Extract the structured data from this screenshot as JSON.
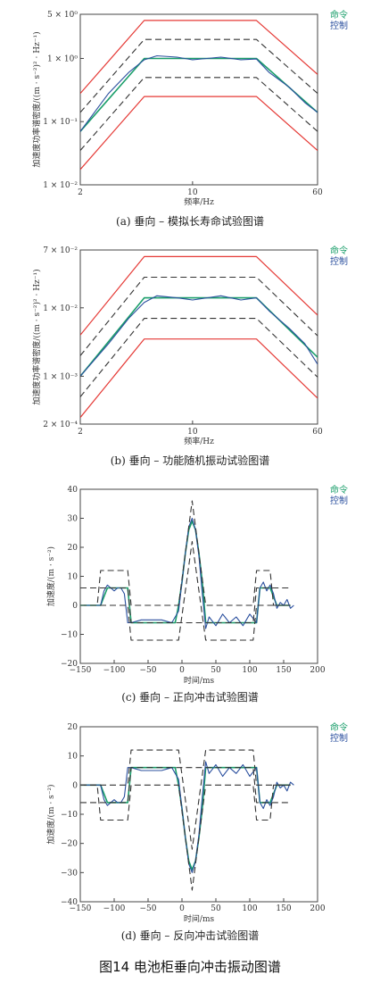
{
  "figure_title": "图14 电池柜垂向冲击振动图谱",
  "colors": {
    "limit": "#e53935",
    "alarm": "#333333",
    "command": "#1a9e6a",
    "control": "#2a4f9e"
  },
  "chart_data": [
    {
      "type": "line",
      "caption": "(a) 垂向 – 模拟长寿命试验图谱",
      "xlabel": "频率/Hz",
      "ylabel": "加速度功率谱密度/((m · s⁻²)² · Hz⁻¹)",
      "xscale": "log",
      "yscale": "log",
      "xlim": [
        2,
        60
      ],
      "ylim": [
        0.01,
        5
      ],
      "x_tick_labels": [
        "2",
        "10",
        "60"
      ],
      "y_tick_labels": [
        "5 × 10⁰",
        "1 × 10⁰",
        "1 × 10⁻¹",
        "1 × 10⁻²"
      ],
      "legend": [
        "命令",
        "控制"
      ],
      "series": [
        {
          "name": "命令",
          "x": [
            2,
            5,
            25,
            60
          ],
          "y": [
            0.07,
            1.0,
            1.0,
            0.14
          ]
        },
        {
          "name": "控制",
          "x": [
            2,
            3,
            4,
            5,
            6,
            8,
            10,
            15,
            20,
            25,
            30,
            40,
            50,
            60
          ],
          "y": [
            0.07,
            0.28,
            0.6,
            0.95,
            1.1,
            1.05,
            0.95,
            1.05,
            0.95,
            0.98,
            0.6,
            0.35,
            0.2,
            0.14
          ]
        },
        {
          "name": "upper limit",
          "x": [
            2,
            5,
            25,
            60
          ],
          "y": [
            0.28,
            4.0,
            4.0,
            0.56
          ]
        },
        {
          "name": "upper alarm",
          "x": [
            2,
            5,
            25,
            60
          ],
          "y": [
            0.14,
            2.0,
            2.0,
            0.28
          ]
        },
        {
          "name": "lower alarm",
          "x": [
            2,
            5,
            25,
            60
          ],
          "y": [
            0.035,
            0.5,
            0.5,
            0.07
          ]
        },
        {
          "name": "lower limit",
          "x": [
            2,
            5,
            25,
            60
          ],
          "y": [
            0.0175,
            0.25,
            0.25,
            0.035
          ]
        }
      ]
    },
    {
      "type": "line",
      "caption": "(b) 垂向 – 功能随机振动试验图谱",
      "xlabel": "频率/Hz",
      "ylabel": "加速度功率谱密度/((m · s⁻²)² · Hz⁻¹)",
      "xscale": "log",
      "yscale": "log",
      "xlim": [
        2,
        60
      ],
      "ylim": [
        0.0002,
        0.07
      ],
      "x_tick_labels": [
        "2",
        "10",
        "60"
      ],
      "y_tick_labels": [
        "7 × 10⁻²",
        "1 × 10⁻²",
        "1 × 10⁻³",
        "2 × 10⁻⁴"
      ],
      "legend": [
        "命令",
        "控制"
      ],
      "series": [
        {
          "name": "命令",
          "x": [
            2,
            5,
            25,
            60
          ],
          "y": [
            0.001,
            0.014,
            0.014,
            0.0019
          ]
        },
        {
          "name": "控制",
          "x": [
            2,
            3,
            4,
            5,
            6,
            8,
            10,
            15,
            20,
            25,
            30,
            40,
            50,
            60
          ],
          "y": [
            0.001,
            0.003,
            0.007,
            0.012,
            0.015,
            0.014,
            0.013,
            0.015,
            0.013,
            0.014,
            0.009,
            0.005,
            0.003,
            0.0015
          ]
        },
        {
          "name": "upper limit",
          "x": [
            2,
            5,
            25,
            60
          ],
          "y": [
            0.004,
            0.056,
            0.056,
            0.0078
          ]
        },
        {
          "name": "upper alarm",
          "x": [
            2,
            5,
            25,
            60
          ],
          "y": [
            0.002,
            0.028,
            0.028,
            0.0039
          ]
        },
        {
          "name": "lower alarm",
          "x": [
            2,
            5,
            25,
            60
          ],
          "y": [
            0.0005,
            0.007,
            0.007,
            0.00097
          ]
        },
        {
          "name": "lower limit",
          "x": [
            2,
            5,
            25,
            60
          ],
          "y": [
            0.00025,
            0.0035,
            0.0035,
            0.00048
          ]
        }
      ]
    },
    {
      "type": "line",
      "caption": "(c) 垂向 – 正向冲击试验图谱",
      "xlabel": "时间/ms",
      "ylabel": "加速度/(m · s⁻²)",
      "xlim": [
        -150,
        200
      ],
      "ylim": [
        -20,
        40
      ],
      "x_ticks": [
        -150,
        -100,
        -50,
        0,
        50,
        100,
        150,
        200
      ],
      "y_ticks": [
        -20,
        -10,
        0,
        10,
        20,
        30,
        40
      ],
      "legend": [
        "命令",
        "控制"
      ],
      "series": [
        {
          "name": "命令",
          "x": [
            -150,
            -120,
            -110,
            -100,
            -90,
            -80,
            -75,
            -10,
            -5,
            0,
            5,
            10,
            15,
            20,
            25,
            30,
            35,
            110,
            115,
            130,
            140,
            150,
            160
          ],
          "y": [
            0,
            0,
            6,
            6,
            6,
            6,
            -6,
            -6,
            0,
            8,
            18,
            26,
            29,
            26,
            18,
            8,
            -6,
            -6,
            6,
            6,
            0,
            0,
            0
          ]
        },
        {
          "name": "控制",
          "x": [
            -150,
            -120,
            -115,
            -110,
            -105,
            -100,
            -95,
            -90,
            -85,
            -80,
            -75,
            -60,
            -45,
            -30,
            -15,
            -5,
            0,
            5,
            10,
            15,
            20,
            25,
            30,
            35,
            40,
            50,
            60,
            70,
            80,
            90,
            100,
            110,
            115,
            120,
            125,
            130,
            135,
            140,
            145,
            150,
            155,
            160,
            165
          ],
          "y": [
            0,
            0,
            5,
            7,
            6,
            5,
            6,
            6,
            4,
            -6,
            -6,
            -5,
            -5,
            -5,
            -6,
            -2,
            8,
            18,
            27,
            30,
            26,
            17,
            4,
            -8,
            -4,
            -7,
            -3,
            -6,
            -4,
            -7,
            -3,
            -6,
            6,
            8,
            5,
            7,
            4,
            -1,
            1,
            0,
            2,
            -1,
            0
          ]
        },
        {
          "name": "upper limit",
          "x": [
            -150,
            -125,
            -120,
            -80,
            -75,
            -5,
            15,
            35,
            105,
            110,
            130,
            135,
            160
          ],
          "y": [
            0,
            0,
            12,
            12,
            0,
            0,
            36,
            0,
            0,
            12,
            12,
            0,
            0
          ]
        },
        {
          "name": "upper alarm",
          "x": [
            -150,
            -80,
            -75,
            -5,
            105,
            110,
            160
          ],
          "y": [
            6,
            6,
            -6,
            -6,
            -6,
            6,
            6
          ]
        },
        {
          "name": "lower limit",
          "x": [
            -150,
            -125,
            -120,
            -80,
            -75,
            -5,
            15,
            35,
            105,
            110,
            130,
            135,
            160
          ],
          "y": [
            0,
            0,
            0,
            0,
            -12,
            -12,
            22,
            -12,
            -12,
            0,
            0,
            0,
            0
          ]
        }
      ]
    },
    {
      "type": "line",
      "caption": "(d) 垂向 – 反向冲击试验图谱",
      "xlabel": "时间/ms",
      "ylabel": "加速度/(m · s⁻²)",
      "xlim": [
        -150,
        200
      ],
      "ylim": [
        -40,
        20
      ],
      "x_ticks": [
        -150,
        -100,
        -50,
        0,
        50,
        100,
        150,
        200
      ],
      "y_ticks": [
        -40,
        -30,
        -20,
        -10,
        0,
        10,
        20
      ],
      "legend": [
        "命令",
        "控制"
      ],
      "series": [
        {
          "name": "命令",
          "x": [
            -150,
            -120,
            -110,
            -100,
            -90,
            -80,
            -75,
            -10,
            -5,
            0,
            5,
            10,
            15,
            20,
            25,
            30,
            35,
            110,
            115,
            130,
            140,
            150,
            160
          ],
          "y": [
            0,
            0,
            -6,
            -6,
            -6,
            -6,
            6,
            6,
            0,
            -8,
            -18,
            -26,
            -29,
            -26,
            -18,
            -8,
            6,
            6,
            -6,
            -6,
            0,
            0,
            0
          ]
        },
        {
          "name": "控制",
          "x": [
            -150,
            -120,
            -115,
            -110,
            -105,
            -100,
            -95,
            -90,
            -85,
            -80,
            -75,
            -60,
            -45,
            -30,
            -15,
            -5,
            0,
            5,
            10,
            15,
            20,
            25,
            30,
            35,
            40,
            50,
            60,
            70,
            80,
            90,
            100,
            110,
            115,
            120,
            125,
            130,
            135,
            140,
            145,
            150,
            155,
            160,
            165
          ],
          "y": [
            0,
            0,
            -5,
            -7,
            -6,
            -5,
            -6,
            -6,
            -4,
            6,
            6,
            5,
            5,
            5,
            6,
            2,
            -8,
            -18,
            -27,
            -30,
            -26,
            -17,
            -4,
            8,
            4,
            7,
            3,
            6,
            4,
            7,
            3,
            6,
            -6,
            -8,
            -5,
            -7,
            -4,
            1,
            -1,
            0,
            -2,
            1,
            0
          ]
        },
        {
          "name": "upper limit",
          "x": [
            -150,
            -125,
            -120,
            -80,
            -75,
            -5,
            15,
            35,
            105,
            110,
            130,
            135,
            160
          ],
          "y": [
            0,
            0,
            0,
            0,
            12,
            12,
            -22,
            12,
            12,
            0,
            0,
            0,
            0
          ]
        },
        {
          "name": "lower alarm",
          "x": [
            -150,
            -80,
            -75,
            -5,
            105,
            110,
            160
          ],
          "y": [
            -6,
            -6,
            6,
            6,
            6,
            -6,
            -6
          ]
        },
        {
          "name": "lower limit",
          "x": [
            -150,
            -125,
            -120,
            -80,
            -75,
            -5,
            15,
            35,
            105,
            110,
            130,
            135,
            160
          ],
          "y": [
            0,
            0,
            -12,
            -12,
            0,
            0,
            -36,
            0,
            0,
            -12,
            -12,
            0,
            0
          ]
        }
      ]
    }
  ]
}
